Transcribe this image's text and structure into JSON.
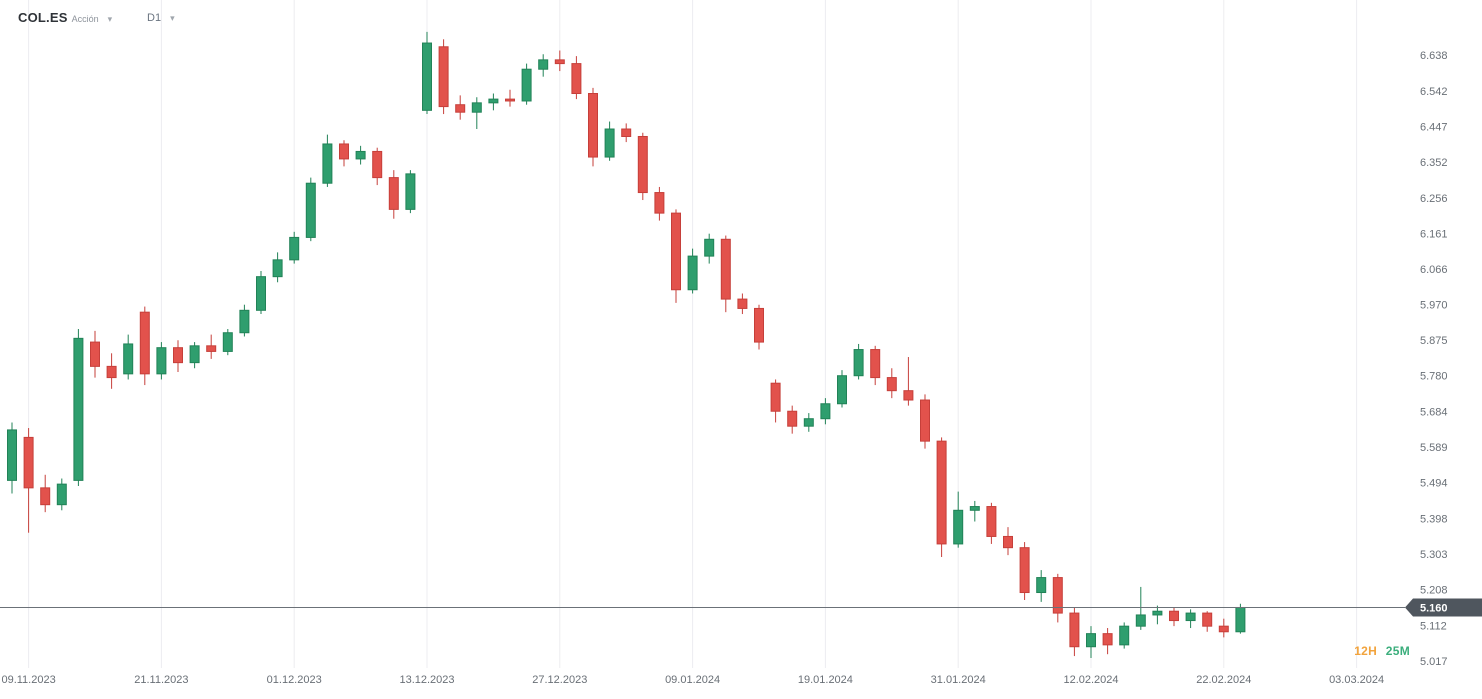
{
  "header": {
    "symbol": "COL.ES",
    "instrument_type": "Acción",
    "timeframe": "D1"
  },
  "chart_data": {
    "type": "candlestick",
    "title": "COL.ES Acción — D1 daily candlestick chart",
    "symbol": "COL.ES",
    "instrument_type": "Acción",
    "timeframe": "D1",
    "current_price": "5.160",
    "countdown": {
      "hours": "12H",
      "minutes": "25M"
    },
    "y_ticks": [
      "6.638",
      "6.542",
      "6.447",
      "6.352",
      "6.256",
      "6.161",
      "6.066",
      "5.970",
      "5.875",
      "5.780",
      "5.684",
      "5.589",
      "5.494",
      "5.398",
      "5.303",
      "5.208",
      "5.112",
      "5.017"
    ],
    "x_ticks": [
      {
        "label": "09.11.2023",
        "index": 1
      },
      {
        "label": "21.11.2023",
        "index": 9
      },
      {
        "label": "01.12.2023",
        "index": 17
      },
      {
        "label": "13.12.2023",
        "index": 25
      },
      {
        "label": "27.12.2023",
        "index": 33
      },
      {
        "label": "09.01.2024",
        "index": 41
      },
      {
        "label": "19.01.2024",
        "index": 49
      },
      {
        "label": "31.01.2024",
        "index": 57
      },
      {
        "label": "12.02.2024",
        "index": 65
      },
      {
        "label": "22.02.2024",
        "index": 73
      },
      {
        "label": "03.03.2024",
        "index": 81
      }
    ],
    "candles": [
      [
        5.5,
        5.655,
        5.465,
        5.635
      ],
      [
        5.615,
        5.64,
        5.36,
        5.48
      ],
      [
        5.48,
        5.515,
        5.415,
        5.435
      ],
      [
        5.435,
        5.505,
        5.42,
        5.49
      ],
      [
        5.5,
        5.905,
        5.485,
        5.88
      ],
      [
        5.87,
        5.9,
        5.775,
        5.805
      ],
      [
        5.805,
        5.84,
        5.745,
        5.775
      ],
      [
        5.785,
        5.89,
        5.77,
        5.865
      ],
      [
        5.95,
        5.965,
        5.755,
        5.785
      ],
      [
        5.785,
        5.87,
        5.77,
        5.855
      ],
      [
        5.855,
        5.875,
        5.79,
        5.815
      ],
      [
        5.815,
        5.87,
        5.8,
        5.86
      ],
      [
        5.86,
        5.89,
        5.825,
        5.845
      ],
      [
        5.845,
        5.905,
        5.835,
        5.895
      ],
      [
        5.895,
        5.97,
        5.885,
        5.955
      ],
      [
        5.955,
        6.06,
        5.945,
        6.045
      ],
      [
        6.045,
        6.11,
        6.03,
        6.09
      ],
      [
        6.09,
        6.165,
        6.08,
        6.15
      ],
      [
        6.15,
        6.31,
        6.14,
        6.295
      ],
      [
        6.295,
        6.425,
        6.285,
        6.4
      ],
      [
        6.4,
        6.41,
        6.34,
        6.36
      ],
      [
        6.36,
        6.395,
        6.345,
        6.38
      ],
      [
        6.38,
        6.39,
        6.29,
        6.31
      ],
      [
        6.31,
        6.33,
        6.2,
        6.225
      ],
      [
        6.225,
        6.33,
        6.215,
        6.32
      ],
      [
        6.49,
        6.7,
        6.48,
        6.67
      ],
      [
        6.66,
        6.68,
        6.48,
        6.5
      ],
      [
        6.505,
        6.53,
        6.465,
        6.485
      ],
      [
        6.485,
        6.525,
        6.44,
        6.51
      ],
      [
        6.51,
        6.535,
        6.49,
        6.52
      ],
      [
        6.52,
        6.545,
        6.5,
        6.515
      ],
      [
        6.515,
        6.615,
        6.505,
        6.6
      ],
      [
        6.6,
        6.64,
        6.58,
        6.625
      ],
      [
        6.625,
        6.65,
        6.595,
        6.615
      ],
      [
        6.615,
        6.635,
        6.52,
        6.535
      ],
      [
        6.535,
        6.55,
        6.34,
        6.365
      ],
      [
        6.365,
        6.46,
        6.355,
        6.44
      ],
      [
        6.44,
        6.455,
        6.405,
        6.42
      ],
      [
        6.42,
        6.43,
        6.25,
        6.27
      ],
      [
        6.27,
        6.285,
        6.195,
        6.215
      ],
      [
        6.215,
        6.225,
        5.975,
        6.01
      ],
      [
        6.01,
        6.12,
        6.0,
        6.1
      ],
      [
        6.1,
        6.16,
        6.08,
        6.145
      ],
      [
        6.145,
        6.155,
        5.95,
        5.985
      ],
      [
        5.985,
        6.0,
        5.945,
        5.96
      ],
      [
        5.96,
        5.97,
        5.85,
        5.87
      ],
      [
        5.76,
        5.77,
        5.655,
        5.685
      ],
      [
        5.685,
        5.7,
        5.625,
        5.645
      ],
      [
        5.645,
        5.68,
        5.63,
        5.665
      ],
      [
        5.665,
        5.72,
        5.65,
        5.705
      ],
      [
        5.705,
        5.795,
        5.695,
        5.78
      ],
      [
        5.78,
        5.865,
        5.77,
        5.85
      ],
      [
        5.85,
        5.86,
        5.755,
        5.775
      ],
      [
        5.775,
        5.8,
        5.72,
        5.74
      ],
      [
        5.74,
        5.83,
        5.7,
        5.715
      ],
      [
        5.715,
        5.73,
        5.585,
        5.605
      ],
      [
        5.605,
        5.615,
        5.295,
        5.33
      ],
      [
        5.33,
        5.47,
        5.32,
        5.42
      ],
      [
        5.42,
        5.445,
        5.39,
        5.43
      ],
      [
        5.43,
        5.44,
        5.33,
        5.35
      ],
      [
        5.35,
        5.375,
        5.3,
        5.32
      ],
      [
        5.32,
        5.335,
        5.18,
        5.2
      ],
      [
        5.2,
        5.26,
        5.175,
        5.24
      ],
      [
        5.24,
        5.25,
        5.12,
        5.145
      ],
      [
        5.145,
        5.16,
        5.03,
        5.055
      ],
      [
        5.055,
        5.11,
        5.025,
        5.09
      ],
      [
        5.09,
        5.105,
        5.035,
        5.06
      ],
      [
        5.06,
        5.12,
        5.05,
        5.11
      ],
      [
        5.11,
        5.215,
        5.1,
        5.14
      ],
      [
        5.14,
        5.165,
        5.115,
        5.15
      ],
      [
        5.15,
        5.16,
        5.11,
        5.125
      ],
      [
        5.125,
        5.155,
        5.105,
        5.145
      ],
      [
        5.145,
        5.15,
        5.095,
        5.11
      ],
      [
        5.11,
        5.13,
        5.08,
        5.095
      ],
      [
        5.095,
        5.17,
        5.09,
        5.16
      ]
    ],
    "colors": {
      "bull": "#2f9e6e",
      "bull_border": "#218257",
      "bear": "#e2524c",
      "bear_border": "#c63f3a",
      "grid": "#ececf0",
      "axis_text": "#696f76",
      "price_line": "#6b7178",
      "badge_bg": "#4f565e",
      "badge_text": "#ffffff",
      "countdown_hours": "#f2a33c",
      "countdown_minutes": "#3bae7c"
    },
    "ylim": [
      5.017,
      6.638
    ],
    "grid": "vertical-only",
    "legend_position": "none"
  }
}
